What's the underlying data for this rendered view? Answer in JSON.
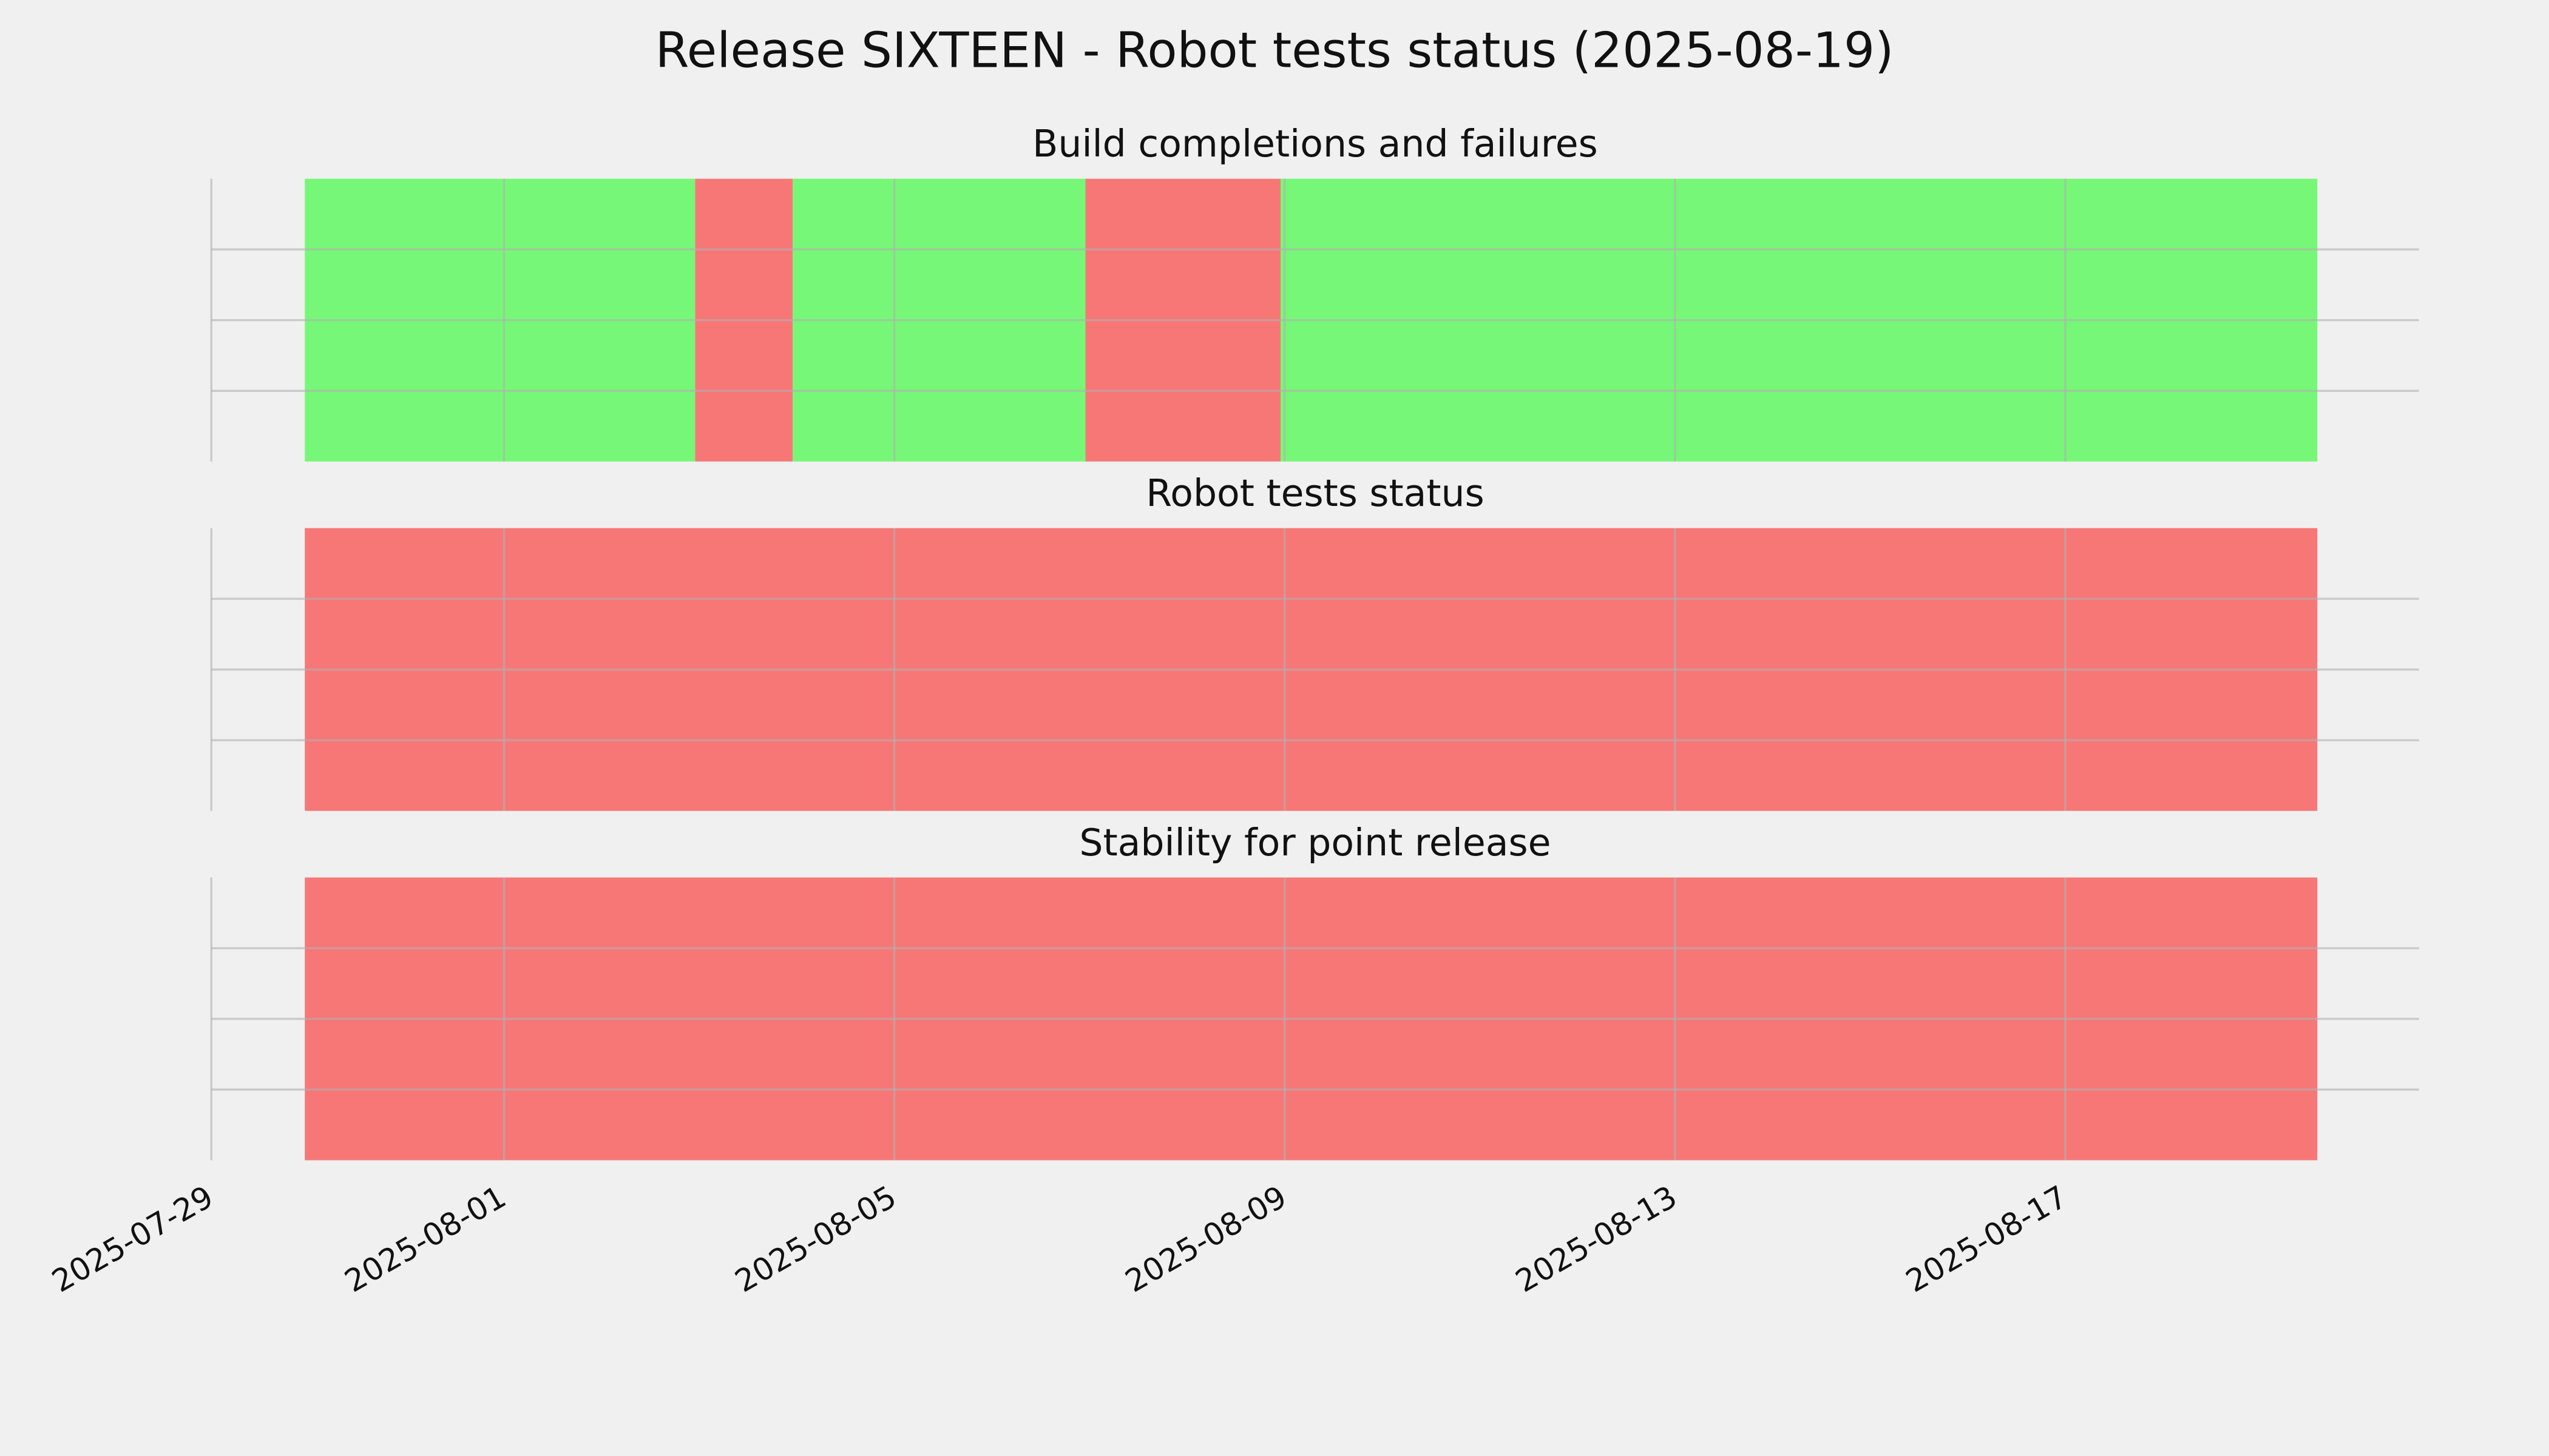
{
  "title": "Release SIXTEEN - Robot tests status (2025-08-19)",
  "chart_data": [
    {
      "type": "timeline",
      "title": "Build completions and failures",
      "segments": [
        {
          "start": "2025-07-29T23:00",
          "end": "2025-08-02T23:00",
          "color": "#77f777"
        },
        {
          "start": "2025-08-02T23:00",
          "end": "2025-08-03T23:00",
          "color": "#f77777"
        },
        {
          "start": "2025-08-03T23:00",
          "end": "2025-08-06T23:00",
          "color": "#77f777"
        },
        {
          "start": "2025-08-06T23:00",
          "end": "2025-08-08T23:00",
          "color": "#f77777"
        },
        {
          "start": "2025-08-08T23:00",
          "end": "2025-08-19T14:00",
          "color": "#77f777"
        }
      ],
      "xlim": [
        "2025-07-29",
        "2025-08-20T15:00"
      ],
      "xticks": [
        "2025-07-29",
        "2025-08-01",
        "2025-08-05",
        "2025-08-09",
        "2025-08-13",
        "2025-08-17"
      ],
      "ylim": [
        0,
        1
      ],
      "yticks": [
        0.25,
        0.5,
        0.75
      ],
      "grid": true
    },
    {
      "type": "timeline",
      "title": "Robot tests status",
      "segments": [
        {
          "start": "2025-07-29T23:00",
          "end": "2025-08-19T14:00",
          "color": "#f77777"
        }
      ],
      "xlim": [
        "2025-07-29",
        "2025-08-20T15:00"
      ],
      "xticks": [
        "2025-07-29",
        "2025-08-01",
        "2025-08-05",
        "2025-08-09",
        "2025-08-13",
        "2025-08-17"
      ],
      "ylim": [
        0,
        1
      ],
      "yticks": [
        0.25,
        0.5,
        0.75
      ],
      "grid": true
    },
    {
      "type": "timeline",
      "title": "Stability for point release",
      "segments": [
        {
          "start": "2025-07-29T23:00",
          "end": "2025-08-19T14:00",
          "color": "#f77777"
        }
      ],
      "xlim": [
        "2025-07-29",
        "2025-08-20T15:00"
      ],
      "xticks": [
        "2025-07-29",
        "2025-08-01",
        "2025-08-05",
        "2025-08-09",
        "2025-08-13",
        "2025-08-17"
      ],
      "ylim": [
        0,
        1
      ],
      "yticks": [
        0.25,
        0.5,
        0.75
      ],
      "grid": true,
      "show_xtick_labels": true
    }
  ]
}
